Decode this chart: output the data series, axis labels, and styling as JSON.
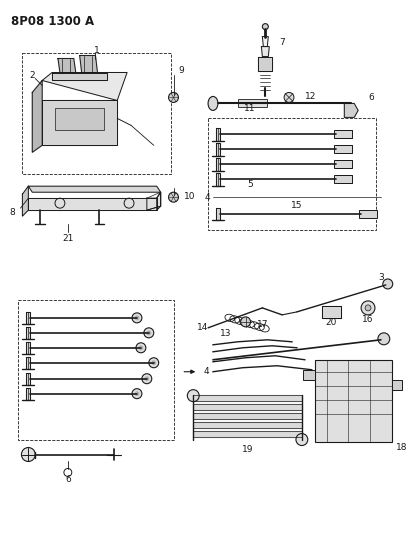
{
  "title": "8P08 1300 A",
  "bg_color": "#ffffff",
  "fg_color": "#1a1a1a",
  "fig_width": 4.1,
  "fig_height": 5.33,
  "dpi": 100,
  "label_fs": 6.5,
  "title_fs": 8.5
}
